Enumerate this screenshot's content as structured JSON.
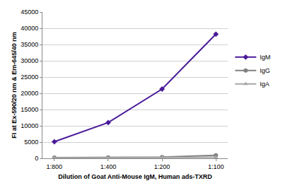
{
  "chart_data": {
    "type": "line",
    "x_label": "Dilution of Goat Anti-Mouse IgM, Human ads-TXRD",
    "y_label": "FI at Ex-590/20 nm & Em-645/40 nm",
    "categories": [
      "1:800",
      "1:400",
      "1:200",
      "1:100"
    ],
    "series": [
      {
        "name": "IgM",
        "color": "#4b1a9a",
        "marker": "diamond",
        "values": [
          5100,
          11000,
          21300,
          38200
        ]
      },
      {
        "name": "IgG",
        "color": "#808080",
        "marker": "circle",
        "values": [
          200,
          250,
          400,
          900
        ]
      },
      {
        "name": "IgA",
        "color": "#a6a6a6",
        "marker": "triangle",
        "values": [
          100,
          150,
          250,
          300
        ]
      }
    ],
    "ylim": [
      0,
      45000
    ],
    "yticks": [
      0,
      5000,
      10000,
      15000,
      20000,
      25000,
      30000,
      35000,
      40000,
      45000
    ],
    "grid": true,
    "legend": "right"
  }
}
